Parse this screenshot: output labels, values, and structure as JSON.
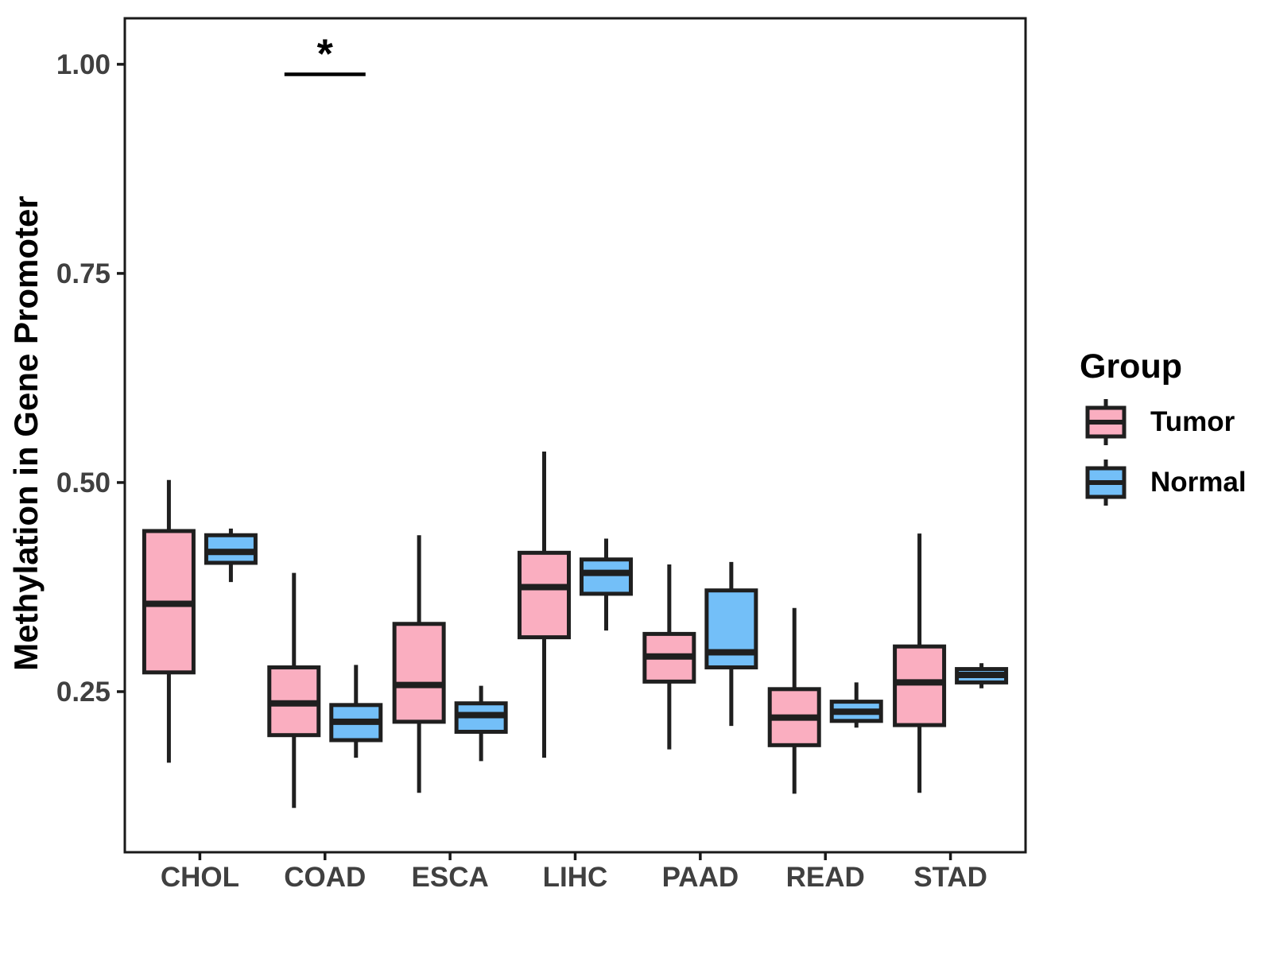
{
  "figure": {
    "background": "#ffffff"
  },
  "legend": {
    "title": "Group",
    "entries": [
      {
        "label": "Tumor",
        "color": "#FAAEC0"
      },
      {
        "label": "Normal",
        "color": "#73BFF8"
      }
    ]
  },
  "chart_data": {
    "type": "boxplot",
    "title": "",
    "xlabel": "",
    "ylabel": "Methylation in Gene Promoter",
    "categories": [
      "CHOL",
      "COAD",
      "ESCA",
      "LIHC",
      "PAAD",
      "READ",
      "STAD"
    ],
    "y_axis": {
      "ticks": [
        0.25,
        0.5,
        0.75,
        1.0
      ],
      "tick_labels": [
        "0.25",
        "0.50",
        "0.75",
        "1.00"
      ],
      "range": [
        0.058,
        1.055
      ]
    },
    "grid": false,
    "legend_position": "right",
    "series": [
      {
        "name": "Tumor",
        "color": "#FAAEC0",
        "boxes": [
          {
            "category": "CHOL",
            "whisker_low": 0.165,
            "q1": 0.273,
            "median": 0.355,
            "q3": 0.442,
            "whisker_high": 0.503
          },
          {
            "category": "COAD",
            "whisker_low": 0.111,
            "q1": 0.198,
            "median": 0.236,
            "q3": 0.279,
            "whisker_high": 0.392
          },
          {
            "category": "ESCA",
            "whisker_low": 0.129,
            "q1": 0.214,
            "median": 0.258,
            "q3": 0.331,
            "whisker_high": 0.437
          },
          {
            "category": "LIHC",
            "whisker_low": 0.171,
            "q1": 0.315,
            "median": 0.375,
            "q3": 0.416,
            "whisker_high": 0.537
          },
          {
            "category": "PAAD",
            "whisker_low": 0.181,
            "q1": 0.262,
            "median": 0.292,
            "q3": 0.319,
            "whisker_high": 0.402
          },
          {
            "category": "READ",
            "whisker_low": 0.128,
            "q1": 0.186,
            "median": 0.219,
            "q3": 0.253,
            "whisker_high": 0.35
          },
          {
            "category": "STAD",
            "whisker_low": 0.129,
            "q1": 0.21,
            "median": 0.261,
            "q3": 0.304,
            "whisker_high": 0.439
          }
        ]
      },
      {
        "name": "Normal",
        "color": "#73BFF8",
        "boxes": [
          {
            "category": "CHOL",
            "whisker_low": 0.381,
            "q1": 0.404,
            "median": 0.417,
            "q3": 0.437,
            "whisker_high": 0.445
          },
          {
            "category": "COAD",
            "whisker_low": 0.171,
            "q1": 0.192,
            "median": 0.214,
            "q3": 0.234,
            "whisker_high": 0.282
          },
          {
            "category": "ESCA",
            "whisker_low": 0.167,
            "q1": 0.202,
            "median": 0.222,
            "q3": 0.236,
            "whisker_high": 0.257
          },
          {
            "category": "LIHC",
            "whisker_low": 0.323,
            "q1": 0.367,
            "median": 0.392,
            "q3": 0.408,
            "whisker_high": 0.433
          },
          {
            "category": "PAAD",
            "whisker_low": 0.209,
            "q1": 0.279,
            "median": 0.297,
            "q3": 0.371,
            "whisker_high": 0.405
          },
          {
            "category": "READ",
            "whisker_low": 0.207,
            "q1": 0.215,
            "median": 0.226,
            "q3": 0.238,
            "whisker_high": 0.261
          },
          {
            "category": "STAD",
            "whisker_low": 0.254,
            "q1": 0.261,
            "median": 0.27,
            "q3": 0.277,
            "whisker_high": 0.284
          }
        ]
      }
    ],
    "annotations": [
      {
        "type": "significance",
        "category": "COAD",
        "label": "*",
        "y": 0.988
      }
    ],
    "style": {
      "box_stroke": "#1F1F1F",
      "axis_color": "#1A1A1A",
      "tick_text_color": "#404040"
    }
  }
}
